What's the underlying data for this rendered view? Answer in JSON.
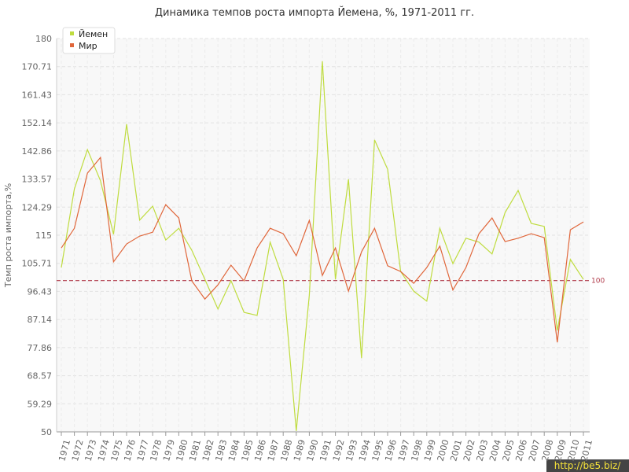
{
  "chart_data": {
    "type": "line",
    "title": "Динамика темпов роста импорта Йемена, %, 1971-2011 гг.",
    "y_label": "Темп роста импорта,%",
    "categories": [
      "1971",
      "1972",
      "1973",
      "1974",
      "1975",
      "1976",
      "1977",
      "1978",
      "1979",
      "1980",
      "1981",
      "1982",
      "1983",
      "1984",
      "1985",
      "1986",
      "1987",
      "1988",
      "1989",
      "1990",
      "1991",
      "1992",
      "1993",
      "1994",
      "1995",
      "1996",
      "1997",
      "1998",
      "1999",
      "2000",
      "2001",
      "2002",
      "2003",
      "2004",
      "2005",
      "2006",
      "2007",
      "2008",
      "2009",
      "2010",
      "2011"
    ],
    "series": [
      {
        "name": "Йемен",
        "color": "#bfdc3f",
        "values": [
          104.3,
          130.3,
          143.3,
          133,
          115.3,
          151.7,
          120,
          124.6,
          113.4,
          117.3,
          110,
          100.4,
          90.6,
          100,
          89.5,
          88.5,
          112.7,
          100.4,
          50.3,
          95.2,
          172.5,
          100.4,
          133.5,
          74.4,
          146.5,
          136.8,
          103,
          96.5,
          93.2,
          117.3,
          105.6,
          114,
          112.7,
          108.8,
          122.5,
          129.8,
          118.9,
          117.9,
          83.5,
          107,
          100.4
        ]
      },
      {
        "name": "Мир",
        "color": "#e0663a",
        "values": [
          110.8,
          117.3,
          135.5,
          140.7,
          106.2,
          112.1,
          114.7,
          116,
          125.1,
          120.7,
          99.9,
          93.9,
          98.6,
          105.1,
          99.9,
          110.8,
          117.3,
          115.5,
          108.2,
          119.9,
          101.7,
          110.8,
          96.5,
          109.5,
          117.3,
          104.9,
          103,
          99.1,
          104.3,
          111.4,
          96.9,
          104.3,
          115.5,
          120.7,
          112.9,
          114,
          115.5,
          114.2,
          79.6,
          116.8,
          119.4
        ]
      }
    ],
    "ylim": [
      50,
      180
    ],
    "yticks": [
      50,
      59.29,
      68.57,
      77.86,
      87.14,
      96.43,
      105.71,
      115,
      124.29,
      133.57,
      142.86,
      152.14,
      161.43,
      170.71,
      180
    ],
    "reference_line": 100,
    "reference_color": "#b03a4a",
    "grid": true,
    "legend": "top-left",
    "watermark": "http://be5.biz/"
  }
}
